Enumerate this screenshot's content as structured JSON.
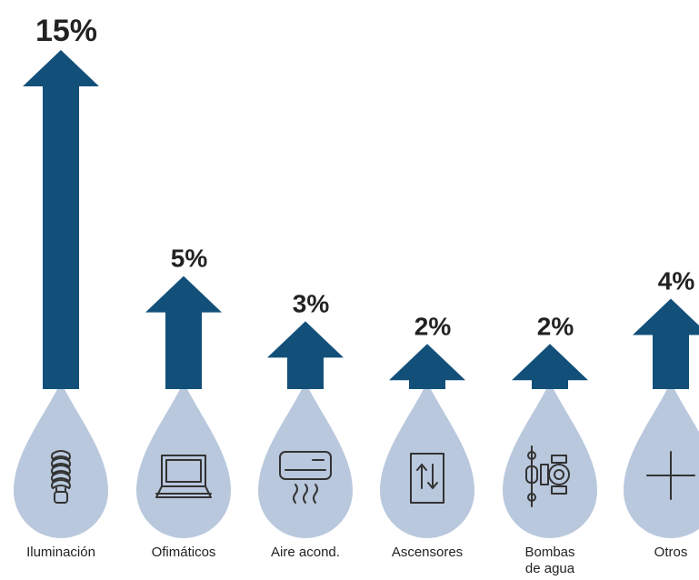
{
  "chart_data": {
    "type": "bar",
    "categories": [
      "Iluminación",
      "Ofimáticos",
      "Aire acond.",
      "Ascensores",
      "Bombas de agua",
      "Otros"
    ],
    "category_lines": [
      [
        "Iluminación"
      ],
      [
        "Ofimáticos"
      ],
      [
        "Aire acond."
      ],
      [
        "Ascensores"
      ],
      [
        "Bombas",
        "de agua"
      ],
      [
        "Otros"
      ]
    ],
    "values": [
      15,
      5,
      3,
      2,
      2,
      4
    ],
    "value_labels": [
      "15%",
      "5%",
      "3%",
      "2%",
      "2%",
      "4%"
    ],
    "icons": [
      "light-bulb-icon",
      "laptop-icon",
      "air-conditioner-icon",
      "elevator-icon",
      "water-pump-icon",
      "plus-icon"
    ],
    "colors": {
      "arrow": "#12507a",
      "drop": "#b9c8dd",
      "text": "#222222"
    },
    "title": "",
    "xlabel": "",
    "ylabel": "",
    "ylim": [
      0,
      15
    ]
  }
}
